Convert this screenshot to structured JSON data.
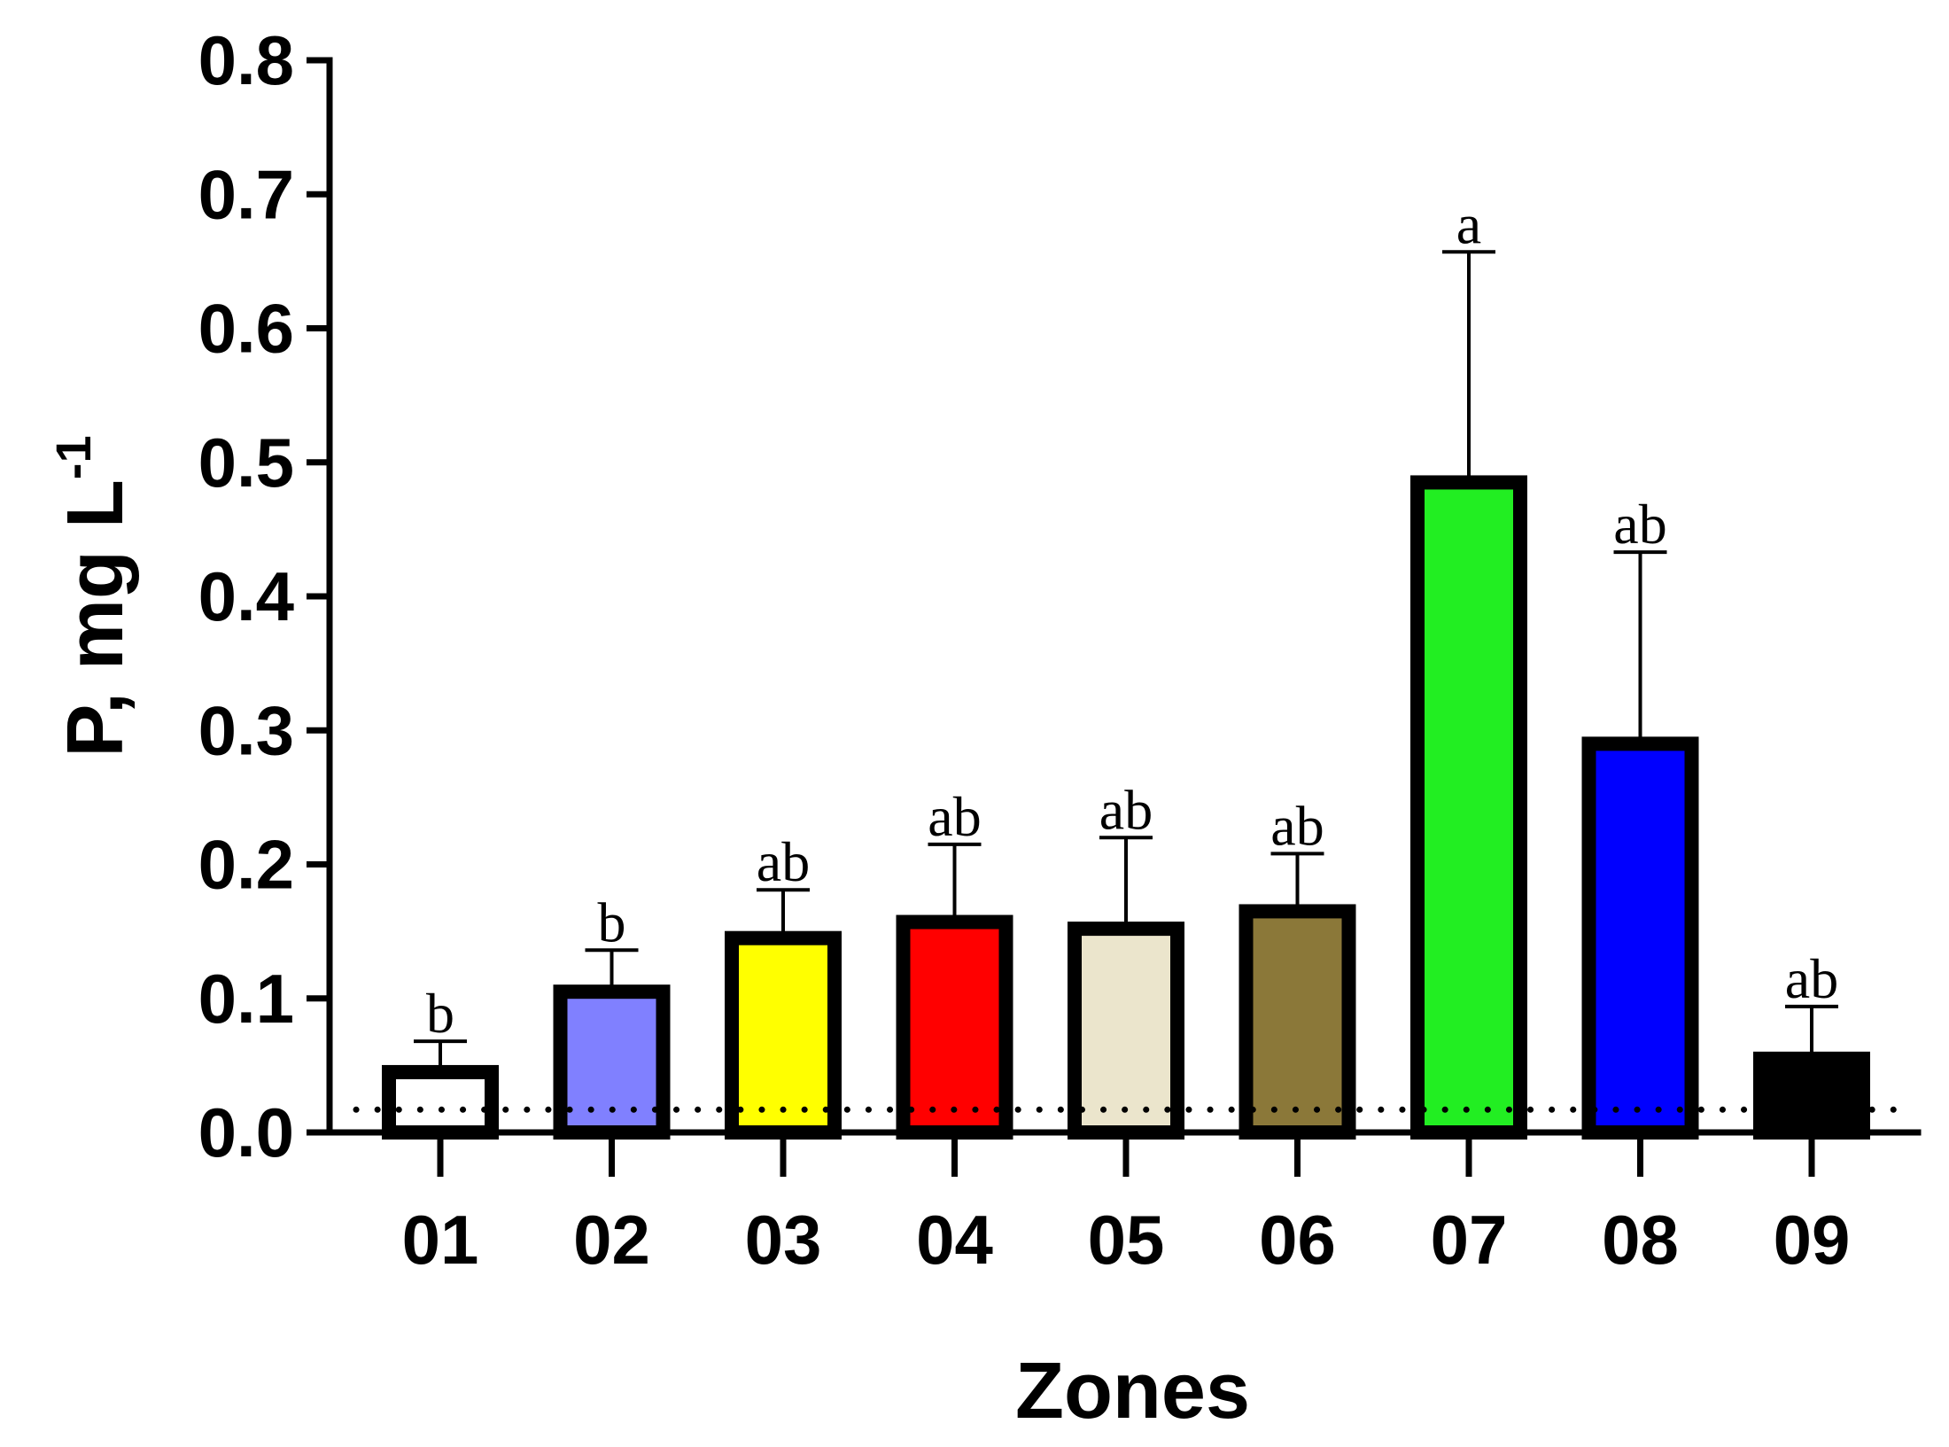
{
  "chart_data": {
    "type": "bar",
    "title": "",
    "xlabel": "Zones",
    "ylabel": "P, mg L",
    "ylabel_sup": "-1",
    "ylim": [
      0,
      0.8
    ],
    "yticks": [
      "0.0",
      "0.1",
      "0.2",
      "0.3",
      "0.4",
      "0.5",
      "0.6",
      "0.7",
      "0.8"
    ],
    "categories": [
      "01",
      "02",
      "03",
      "04",
      "05",
      "06",
      "07",
      "08",
      "09"
    ],
    "values": [
      0.045,
      0.105,
      0.145,
      0.157,
      0.152,
      0.165,
      0.485,
      0.29,
      0.055
    ],
    "error_upper": [
      0.068,
      0.136,
      0.181,
      0.215,
      0.22,
      0.208,
      0.657,
      0.433,
      0.094
    ],
    "significance": [
      "b",
      "b",
      "ab",
      "ab",
      "ab",
      "ab",
      "a",
      "ab",
      "ab"
    ],
    "colors": [
      "#ffffff",
      "#8080ff",
      "#ffff00",
      "#ff0000",
      "#ebe5cc",
      "#8b7839",
      "#22ee22",
      "#0000ff",
      "#000000"
    ],
    "reference_line": 0.017,
    "grid": false,
    "legend": "none"
  }
}
